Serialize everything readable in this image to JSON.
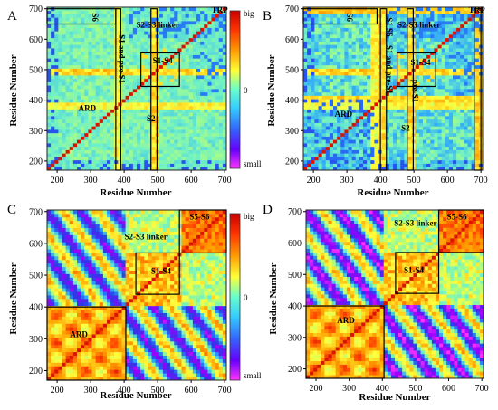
{
  "chart_data": [
    {
      "type": "heatmap",
      "panel": "A",
      "xlabel": "Residue Number",
      "ylabel": "Residue Number",
      "xlim": [
        170,
        705
      ],
      "ylim": [
        170,
        705
      ],
      "xticks": [
        200,
        300,
        400,
        500,
        600,
        700
      ],
      "yticks": [
        200,
        300,
        400,
        500,
        600,
        700
      ],
      "color_scale": {
        "labels": [
          "big",
          "0",
          "small"
        ]
      },
      "annotations": [
        {
          "text": "TRP",
          "x": 685,
          "y": 687,
          "rotate": 0
        },
        {
          "text": "S6",
          "x": 305,
          "y": 672,
          "rotate": 90
        },
        {
          "text": "S2-S3 linker",
          "x": 500,
          "y": 638,
          "rotate": 0
        },
        {
          "text": "S1 and pre-S1",
          "x": 385,
          "y": 535,
          "rotate": 90
        },
        {
          "text": "S1-S4",
          "x": 515,
          "y": 520,
          "rotate": 0
        },
        {
          "text": "ARD",
          "x": 290,
          "y": 365,
          "rotate": 0
        },
        {
          "text": "S2",
          "x": 480,
          "y": 330,
          "rotate": 0
        }
      ],
      "boxes": [
        {
          "x0": 170,
          "x1": 375,
          "y0": 650,
          "y1": 700
        },
        {
          "x0": 450,
          "x1": 565,
          "y0": 445,
          "y1": 555
        },
        {
          "x0": 375,
          "x1": 390,
          "y0": 170,
          "y1": 700
        },
        {
          "x0": 480,
          "x1": 498,
          "y0": 170,
          "y1": 700
        }
      ],
      "style": "A"
    },
    {
      "type": "heatmap",
      "panel": "B",
      "xlabel": "Residue Number",
      "ylabel": "Residue Number",
      "xlim": [
        170,
        705
      ],
      "ylim": [
        170,
        705
      ],
      "xticks": [
        200,
        300,
        400,
        500,
        600,
        700
      ],
      "yticks": [
        200,
        300,
        400,
        500,
        600,
        700
      ],
      "annotations": [
        {
          "text": "TRP",
          "x": 688,
          "y": 687,
          "rotate": 0
        },
        {
          "text": "S6",
          "x": 300,
          "y": 672,
          "rotate": 90
        },
        {
          "text": "S2-S3 linker",
          "x": 515,
          "y": 638,
          "rotate": 0
        },
        {
          "text": "S1 S6",
          "x": 418,
          "y": 640,
          "rotate": 90
        },
        {
          "text": "S1 and pre-S1",
          "x": 418,
          "y": 500,
          "rotate": 90
        },
        {
          "text": "S1-S4",
          "x": 520,
          "y": 515,
          "rotate": 0
        },
        {
          "text": "pre-S1",
          "x": 495,
          "y": 430,
          "rotate": 90
        },
        {
          "text": "ARD",
          "x": 290,
          "y": 345,
          "rotate": 0
        },
        {
          "text": "S2",
          "x": 475,
          "y": 300,
          "rotate": 0
        }
      ],
      "boxes": [
        {
          "x0": 170,
          "x1": 390,
          "y0": 650,
          "y1": 700
        },
        {
          "x0": 450,
          "x1": 565,
          "y0": 445,
          "y1": 555
        },
        {
          "x0": 400,
          "x1": 418,
          "y0": 170,
          "y1": 700
        },
        {
          "x0": 480,
          "x1": 498,
          "y0": 170,
          "y1": 700
        },
        {
          "x0": 680,
          "x1": 700,
          "y0": 170,
          "y1": 700
        }
      ],
      "style": "B"
    },
    {
      "type": "heatmap",
      "panel": "C",
      "xlabel": "Residue Number",
      "ylabel": "Residue Number",
      "xlim": [
        170,
        705
      ],
      "ylim": [
        170,
        705
      ],
      "xticks": [
        200,
        300,
        400,
        500,
        600,
        700
      ],
      "yticks": [
        200,
        300,
        400,
        500,
        600,
        700
      ],
      "color_scale": {
        "labels": [
          "big",
          "0",
          "small"
        ]
      },
      "annotations": [
        {
          "text": "S5-S6",
          "x": 625,
          "y": 675,
          "rotate": 0
        },
        {
          "text": "S2-S3 linker",
          "x": 465,
          "y": 612,
          "rotate": 0
        },
        {
          "text": "S1-S4",
          "x": 510,
          "y": 505,
          "rotate": 0
        },
        {
          "text": "ARD",
          "x": 265,
          "y": 305,
          "rotate": 0
        }
      ],
      "boxes": [
        {
          "x0": 565,
          "x1": 705,
          "y0": 570,
          "y1": 705
        },
        {
          "x0": 435,
          "x1": 565,
          "y0": 440,
          "y1": 570
        },
        {
          "x0": 170,
          "x1": 405,
          "y0": 170,
          "y1": 400
        }
      ],
      "style": "C"
    },
    {
      "type": "heatmap",
      "panel": "D",
      "xlabel": "Residue Number",
      "ylabel": "Residue Number",
      "xlim": [
        170,
        705
      ],
      "ylim": [
        170,
        705
      ],
      "xticks": [
        200,
        300,
        400,
        500,
        600,
        700
      ],
      "yticks": [
        200,
        300,
        400,
        500,
        600,
        700
      ],
      "annotations": [
        {
          "text": "S5-S6",
          "x": 625,
          "y": 675,
          "rotate": 0
        },
        {
          "text": "S2-S3 linker",
          "x": 500,
          "y": 655,
          "rotate": 0
        },
        {
          "text": "S1-S4",
          "x": 495,
          "y": 505,
          "rotate": 0
        },
        {
          "text": "ARD",
          "x": 290,
          "y": 345,
          "rotate": 0
        }
      ],
      "boxes": [
        {
          "x0": 570,
          "x1": 705,
          "y0": 570,
          "y1": 705
        },
        {
          "x0": 440,
          "x1": 570,
          "y0": 440,
          "y1": 570
        },
        {
          "x0": 170,
          "x1": 405,
          "y0": 170,
          "y1": 400
        }
      ],
      "style": "D"
    }
  ]
}
